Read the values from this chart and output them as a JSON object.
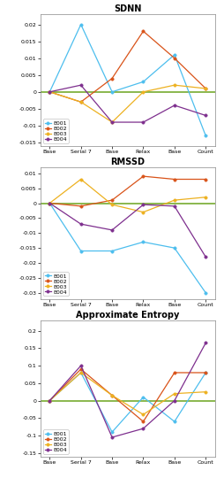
{
  "x_labels": [
    "Base",
    "Serial 7",
    "Base",
    "Relax",
    "Base",
    "Count"
  ],
  "x_positions": [
    0,
    1,
    2,
    3,
    4,
    5
  ],
  "sdnn": {
    "title": "SDNN",
    "ylim": [
      -0.016,
      0.023
    ],
    "yticks": [
      -0.015,
      -0.01,
      -0.005,
      0,
      0.005,
      0.01,
      0.015,
      0.02
    ],
    "E001": [
      0,
      0.02,
      0,
      0.003,
      0.011,
      -0.013
    ],
    "E002": [
      0,
      -0.003,
      0.004,
      0.018,
      0.01,
      0.001
    ],
    "E003": [
      0,
      -0.003,
      -0.009,
      0,
      0.002,
      0.001
    ],
    "E004": [
      0,
      0.002,
      -0.009,
      -0.009,
      -0.004,
      -0.007
    ]
  },
  "rmssd": {
    "title": "RMSSD",
    "ylim": [
      -0.032,
      0.012
    ],
    "yticks": [
      -0.03,
      -0.025,
      -0.02,
      -0.015,
      -0.01,
      -0.005,
      0,
      0.005,
      0.01
    ],
    "E001": [
      0,
      -0.016,
      -0.016,
      -0.013,
      -0.015,
      -0.03
    ],
    "E002": [
      0,
      -0.001,
      0.001,
      0.009,
      0.008,
      0.008
    ],
    "E003": [
      0,
      0.008,
      -0.0005,
      -0.003,
      0.001,
      0.002
    ],
    "E004": [
      0,
      -0.007,
      -0.009,
      -0.0005,
      -0.001,
      -0.018
    ]
  },
  "apen": {
    "title": "Approximate Entropy",
    "ylim": [
      -0.16,
      0.23
    ],
    "yticks": [
      -0.15,
      -0.1,
      -0.05,
      0,
      0.05,
      0.1,
      0.15,
      0.2
    ],
    "E001": [
      0,
      0.08,
      -0.09,
      0.01,
      -0.06,
      0.08
    ],
    "E002": [
      0,
      0.09,
      0.015,
      -0.06,
      0.08,
      0.08
    ],
    "E003": [
      0,
      0.08,
      0.015,
      -0.04,
      0.02,
      0.025
    ],
    "E004": [
      0,
      0.1,
      -0.105,
      -0.08,
      0.0,
      0.165
    ]
  },
  "colors": {
    "E001": "#4DBEEE",
    "E002": "#D95319",
    "E003": "#EDB120",
    "E004": "#7E2F8E"
  },
  "bg_color": "#FFFFFF",
  "zero_line_color": "#77AC30",
  "marker": "o",
  "marker_size": 2.5,
  "linewidth": 0.9,
  "title_fontsize": 7,
  "tick_fontsize": 4.5,
  "legend_fontsize": 4.5,
  "legend_labels": [
    "E001",
    "E002",
    "E003",
    "E004"
  ]
}
